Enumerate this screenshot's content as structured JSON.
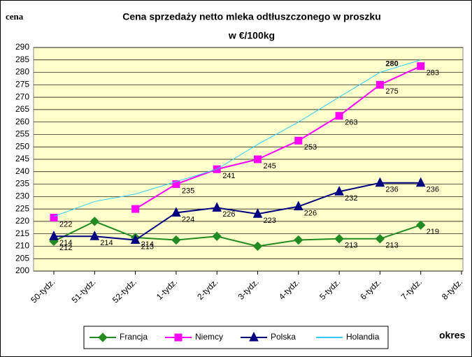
{
  "chart_data": {
    "type": "line",
    "title": [
      "Cena sprzedaży netto mleka odtłuszczonego w proszku",
      "w €/100kg"
    ],
    "y_label": "cena",
    "x_label": "okres",
    "categories": [
      "50-tydz.",
      "51-tydz.",
      "52-tydz.",
      "1-tydz.",
      "2-tydz.",
      "3-tydz.",
      "4-tydz.",
      "5-tydz.",
      "6-tydz.",
      "7-tydz.",
      "8-tydz."
    ],
    "ylim": [
      200,
      290
    ],
    "yticks": [
      200,
      205,
      210,
      215,
      220,
      225,
      230,
      235,
      240,
      245,
      250,
      255,
      260,
      265,
      270,
      275,
      280,
      285,
      290
    ],
    "grid": true,
    "legend": "bottom",
    "series": [
      {
        "name": "Francja",
        "color": "#228B22",
        "marker": "diamond",
        "values": [
          212,
          220,
          213.5,
          212.5,
          214,
          210,
          212.5,
          213,
          213,
          218.5,
          null
        ],
        "value_labels": [
          "212",
          null,
          "214",
          null,
          null,
          null,
          null,
          "213",
          "213",
          "219",
          null
        ]
      },
      {
        "name": "Niemcy",
        "color": "#FF00FF",
        "marker": "square",
        "values": [
          221.5,
          null,
          225,
          235,
          241,
          245,
          252.5,
          262.5,
          275,
          282.5,
          null
        ],
        "value_labels": [
          "222",
          null,
          null,
          "235",
          "241",
          "245",
          "253",
          "263",
          "275",
          "283",
          null
        ]
      },
      {
        "name": "Polska",
        "color": "#000080",
        "marker": "triangle",
        "values": [
          214,
          214,
          212.5,
          223.5,
          225.5,
          223,
          226,
          232,
          235.5,
          235.5,
          null
        ],
        "value_labels": [
          "214",
          "214",
          "213",
          "224",
          "226",
          "223",
          "226",
          "232",
          "236",
          "236",
          null
        ]
      },
      {
        "name": "Holandia",
        "color": "#33CCFF",
        "marker": "none",
        "values": [
          222,
          228,
          231,
          236,
          241,
          251,
          260,
          270,
          280,
          285,
          null
        ],
        "value_labels": [
          null,
          null,
          null,
          null,
          null,
          null,
          null,
          null,
          "280",
          null,
          null
        ]
      }
    ]
  }
}
